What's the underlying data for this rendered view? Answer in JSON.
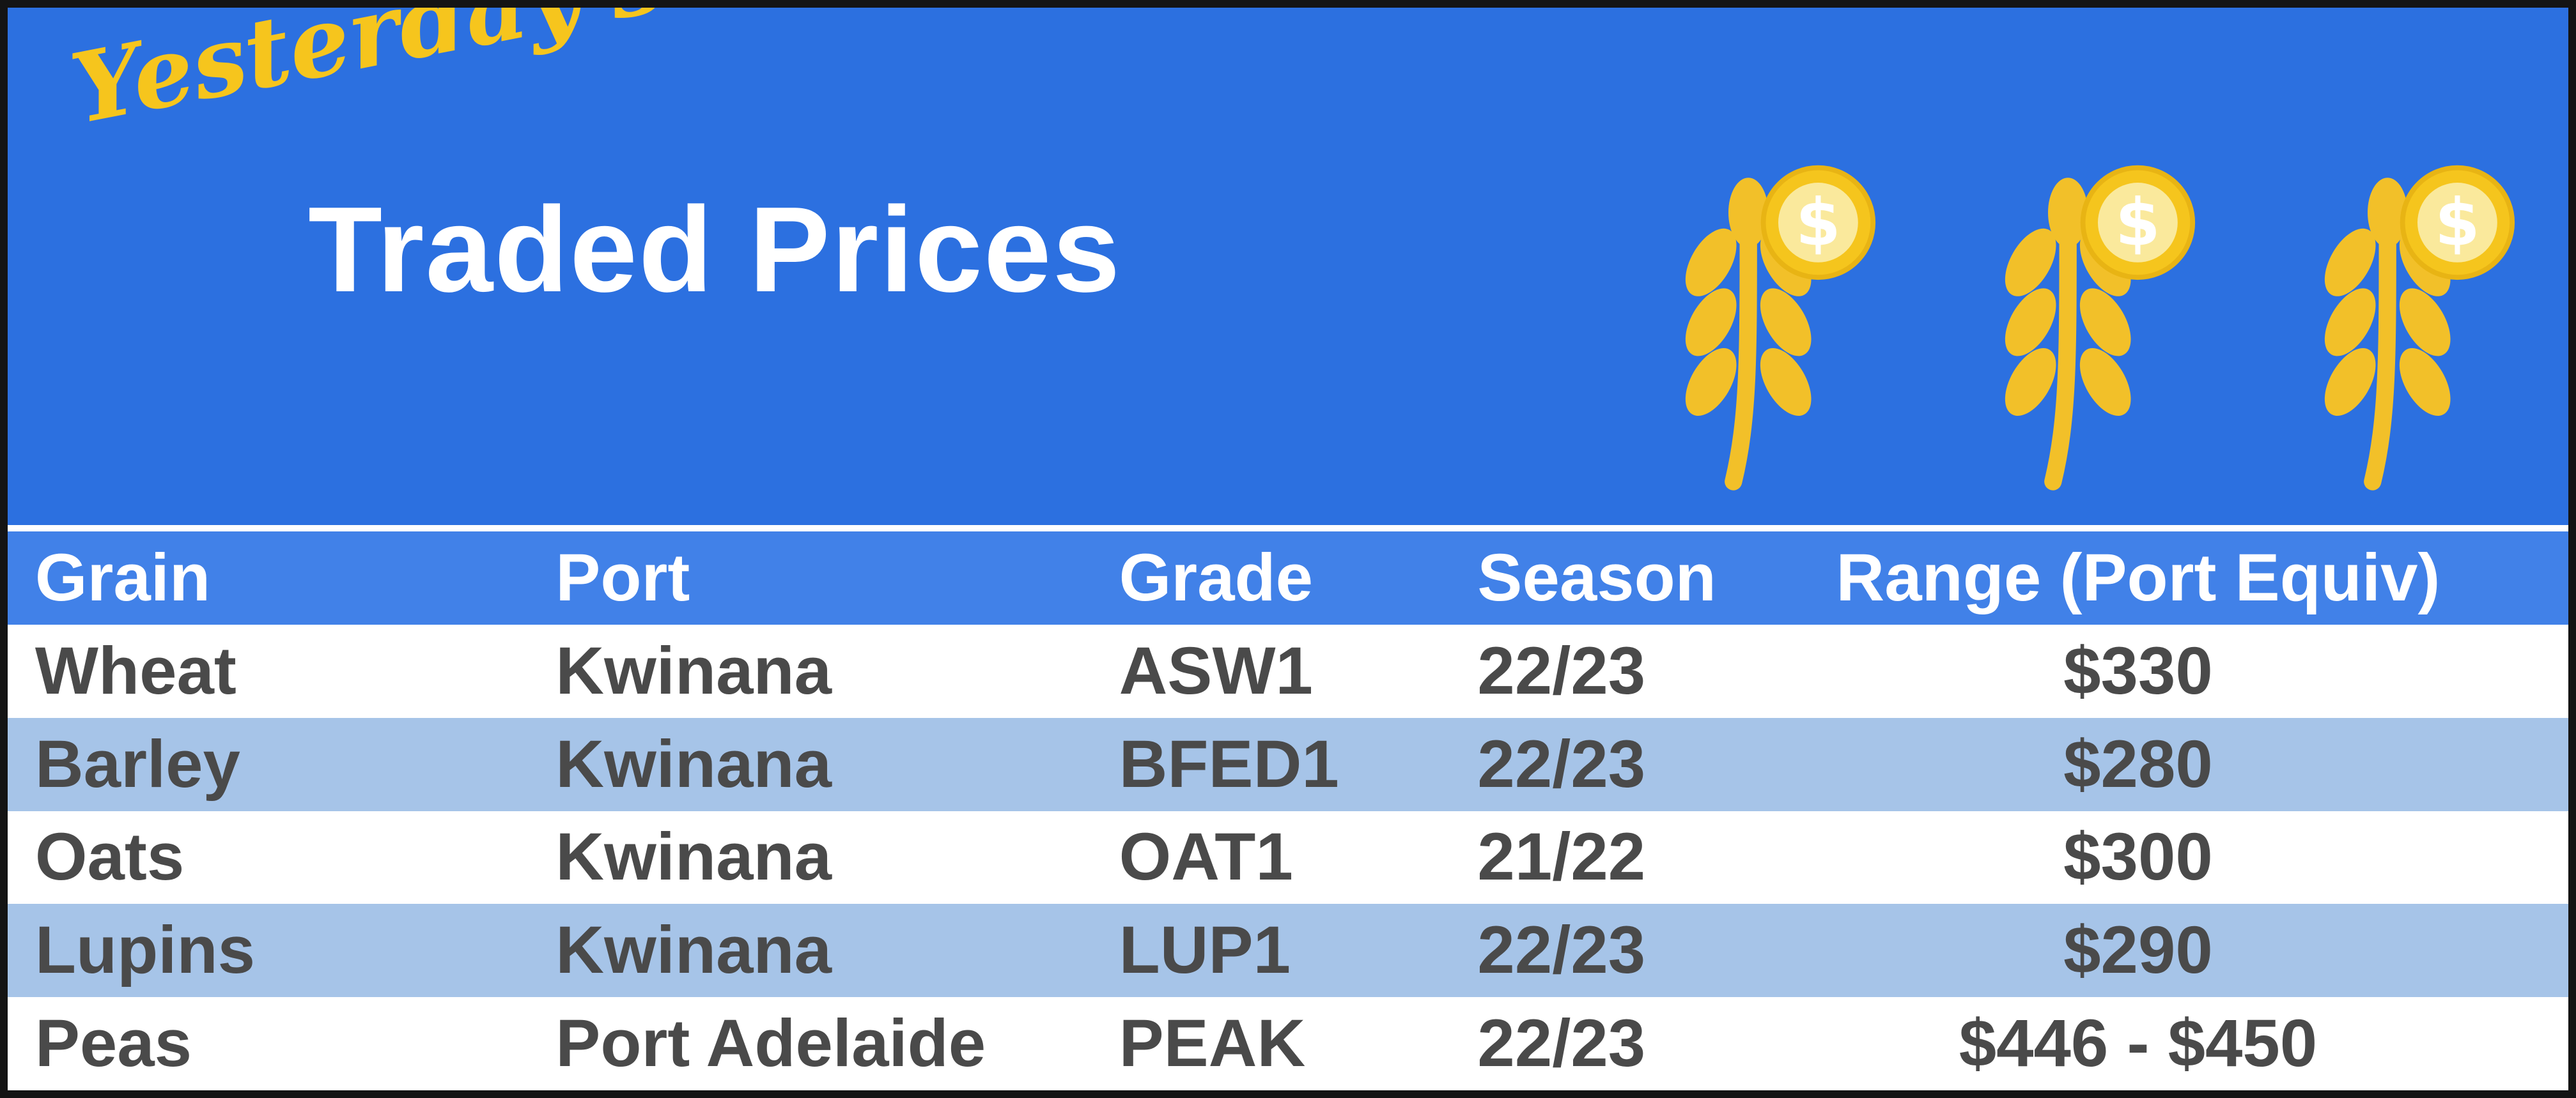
{
  "banner": {
    "script_label": "Yesterday's",
    "title": "Traded Prices"
  },
  "icons": {
    "name": "wheat-dollar-icon",
    "count": 3,
    "coin_symbol": "$",
    "wheat_color": "#f2c029",
    "coin_outer_color": "#f5c51d",
    "coin_inner_color": "#fae99c"
  },
  "table": {
    "columns": [
      "Grain",
      "Port",
      "Grade",
      "Season",
      "Range (Port Equiv)"
    ],
    "rows": [
      [
        "Wheat",
        "Kwinana",
        "ASW1",
        "22/23",
        "$330"
      ],
      [
        "Barley",
        "Kwinana",
        "BFED1",
        "22/23",
        "$280"
      ],
      [
        "Oats",
        "Kwinana",
        "OAT1",
        "21/22",
        "$300"
      ],
      [
        "Lupins",
        "Kwinana",
        "LUP1",
        "22/23",
        "$290"
      ],
      [
        "Peas",
        "Port Adelaide",
        "PEAK",
        "22/23",
        "$446 - $450"
      ]
    ]
  },
  "colors": {
    "banner_blue": "#2c70e0",
    "table_header_blue": "#4181e8",
    "alt_row_blue": "#a6c4e8",
    "text_dark": "#4a4a4a",
    "accent_yellow": "#f6c51d"
  }
}
